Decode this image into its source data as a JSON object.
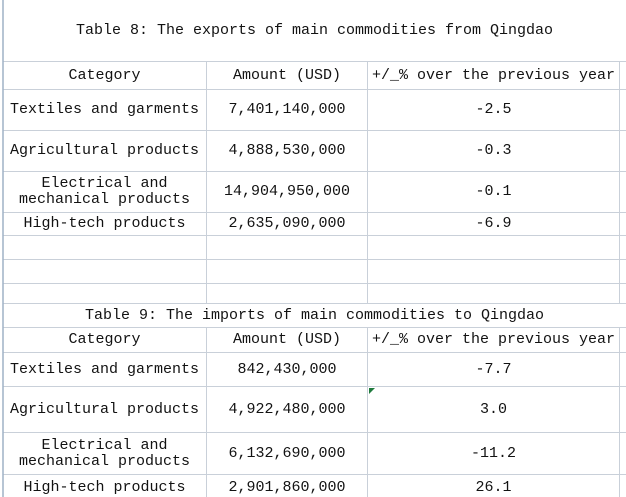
{
  "app": {
    "kind": "spreadsheet-region"
  },
  "colors": {
    "background": "#ffffff",
    "gridline": "#c9d0d9",
    "left_edge": "#9fb2c6",
    "text": "#121212",
    "error_flag_green": "#1e7a3c"
  },
  "icons": {
    "error_flag": "excel-error-indicator-triangle"
  },
  "tables": [
    {
      "title": "Table 8: The exports of main commodities from Qingdao",
      "headers": {
        "category": "Category",
        "amount": "Amount (USD)",
        "change": "+/_% over the previous year"
      },
      "rows": [
        {
          "category": "Textiles and garments",
          "amount": "7,401,140,000",
          "change": "-2.5"
        },
        {
          "category": "Agricultural products",
          "amount": "4,888,530,000",
          "change": "-0.3"
        },
        {
          "category": "Electrical and mechanical products",
          "amount": "14,904,950,000",
          "change": "-0.1"
        },
        {
          "category": "High-tech products",
          "amount": "2,635,090,000",
          "change": "-6.9"
        }
      ]
    },
    {
      "title": "Table 9: The imports of main commodities to Qingdao",
      "headers": {
        "category": "Category",
        "amount": "Amount (USD)",
        "change": "+/_% over the previous year"
      },
      "rows": [
        {
          "category": "Textiles and garments",
          "amount": "842,430,000",
          "change": "-7.7"
        },
        {
          "category": "Agricultural products",
          "amount": "4,922,480,000",
          "change": "3.0",
          "indicator": "error-flag"
        },
        {
          "category": "Electrical and mechanical products",
          "amount": "6,132,690,000",
          "change": "-11.2"
        },
        {
          "category": "High-tech products",
          "amount": "2,901,860,000",
          "change": "26.1"
        }
      ]
    }
  ],
  "chart_data": {
    "type": "table",
    "tables": [
      {
        "title": "Table 8: The exports of main commodities from Qingdao",
        "columns": [
          "Category",
          "Amount (USD)",
          "+/_% over the previous year"
        ],
        "rows": [
          [
            "Textiles and garments",
            7401140000,
            -2.5
          ],
          [
            "Agricultural products",
            4888530000,
            -0.3
          ],
          [
            "Electrical and mechanical products",
            14904950000,
            -0.1
          ],
          [
            "High-tech products",
            2635090000,
            -6.9
          ]
        ]
      },
      {
        "title": "Table 9: The imports of main commodities to Qingdao",
        "columns": [
          "Category",
          "Amount (USD)",
          "+/_% over the previous year"
        ],
        "rows": [
          [
            "Textiles and garments",
            842430000,
            -7.7
          ],
          [
            "Agricultural products",
            4922480000,
            3.0
          ],
          [
            "Electrical and mechanical products",
            6132690000,
            -11.2
          ],
          [
            "High-tech products",
            2901860000,
            26.1
          ]
        ]
      }
    ]
  }
}
